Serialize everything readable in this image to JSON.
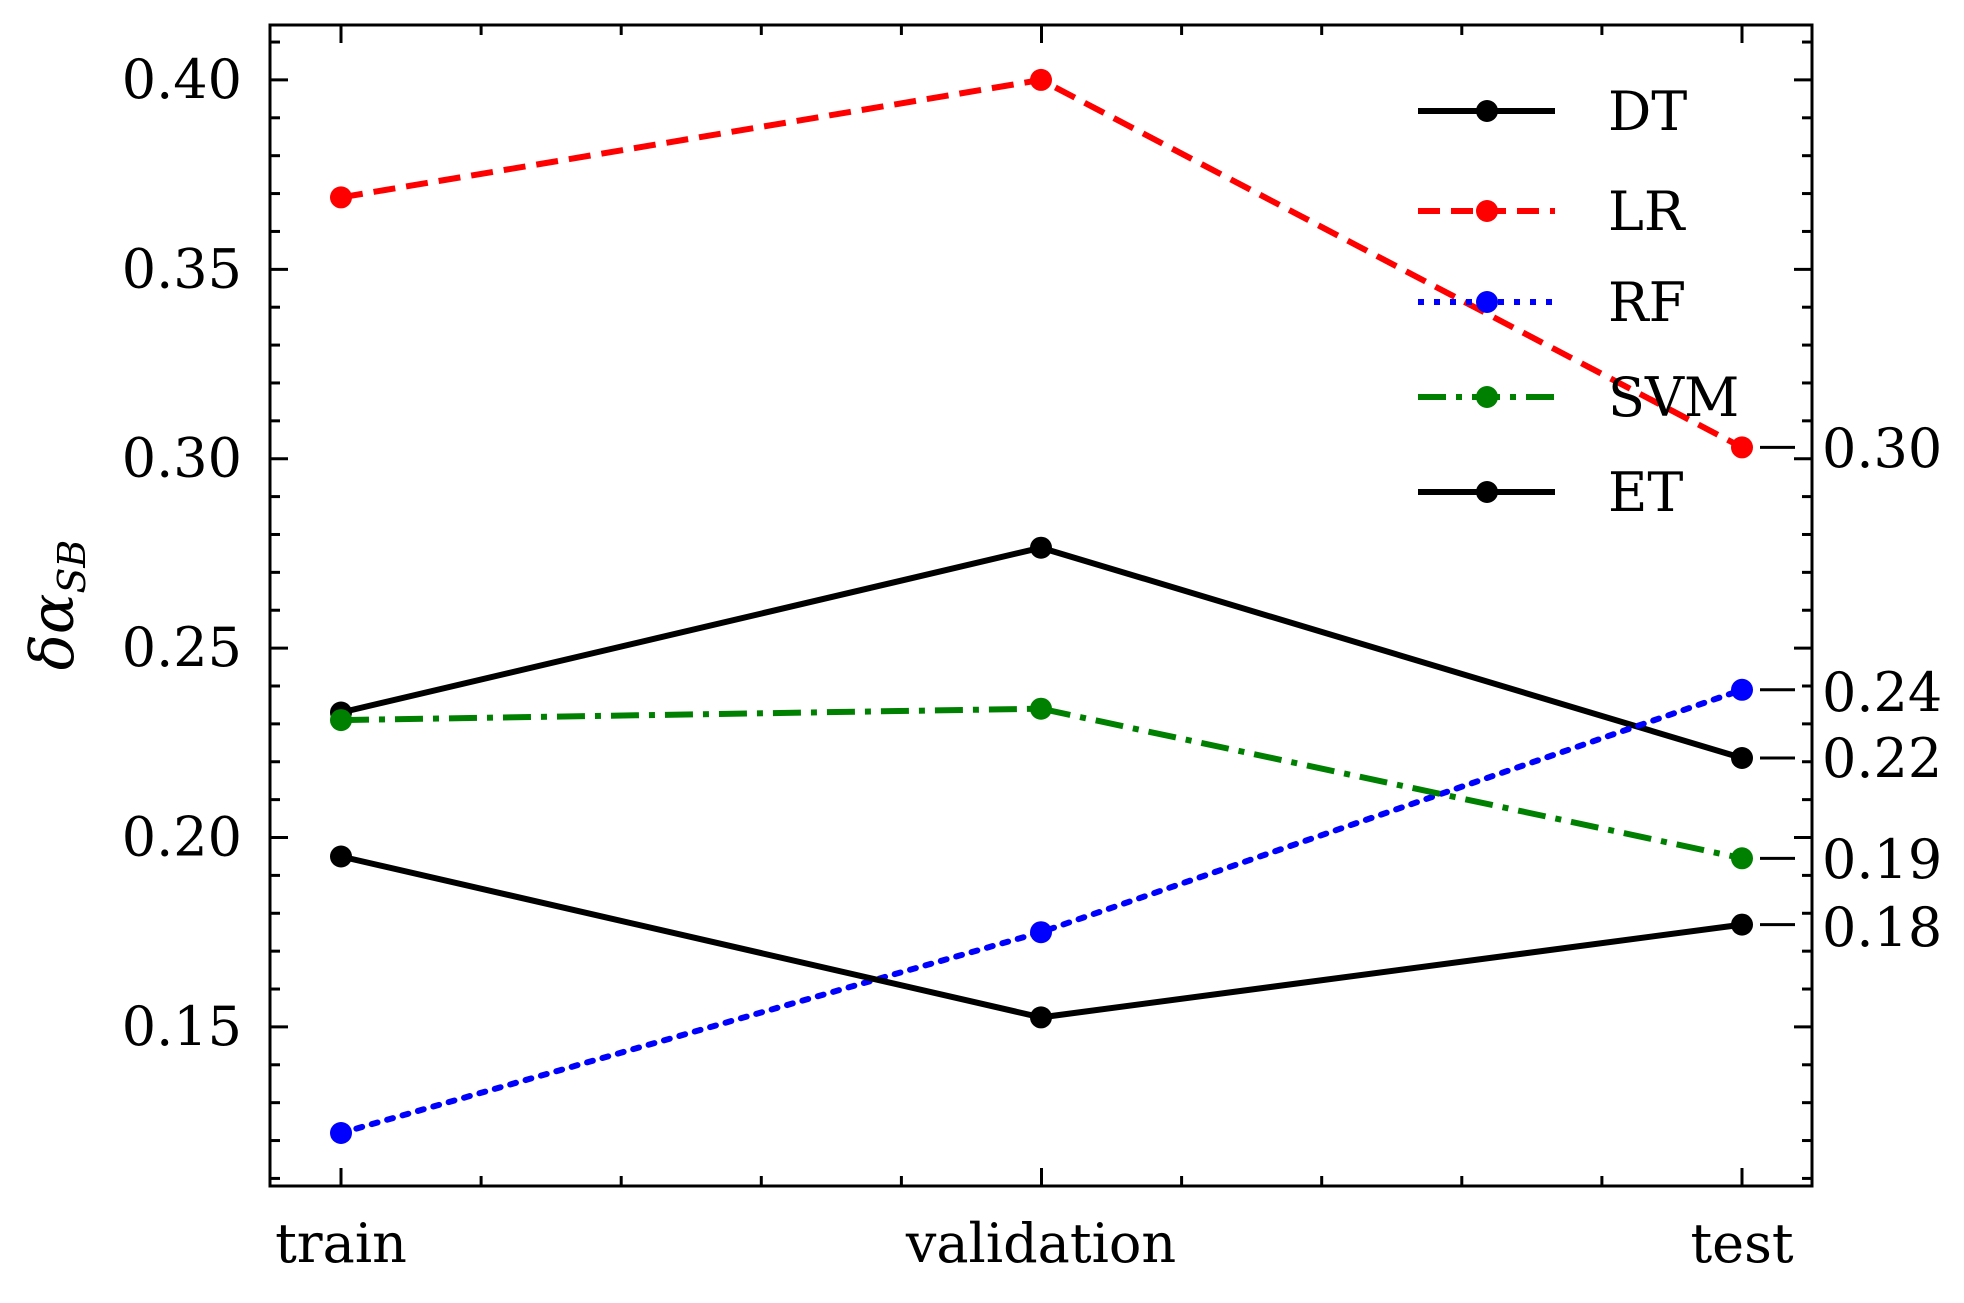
{
  "chart_data": {
    "type": "line",
    "categories": [
      "train",
      "validation",
      "test"
    ],
    "ylabel": "δα_SB",
    "ylim": [
      0.108,
      0.4145
    ],
    "yticks": [
      "0.15",
      "0.20",
      "0.25",
      "0.30",
      "0.35",
      "0.40"
    ],
    "legend_position": "top-right",
    "grid": false,
    "series": [
      {
        "name": "DT",
        "values": [
          0.233,
          0.2765,
          0.221
        ],
        "color": "#000000",
        "dash": "solid",
        "end_label": "0.22"
      },
      {
        "name": "LR",
        "values": [
          0.369,
          0.4,
          0.303
        ],
        "color": "#ff0000",
        "dash": "dashed",
        "end_label": "0.30"
      },
      {
        "name": "RF",
        "values": [
          0.122,
          0.175,
          0.239
        ],
        "color": "#0000ff",
        "dash": "dotted",
        "end_label": "0.24"
      },
      {
        "name": "SVM",
        "values": [
          0.231,
          0.234,
          0.1945
        ],
        "color": "#008000",
        "dash": "dashdot",
        "end_label": "0.19"
      },
      {
        "name": "ET",
        "values": [
          0.195,
          0.1525,
          0.177
        ],
        "color": "#000000",
        "dash": "solid",
        "end_label": "0.18"
      }
    ]
  }
}
